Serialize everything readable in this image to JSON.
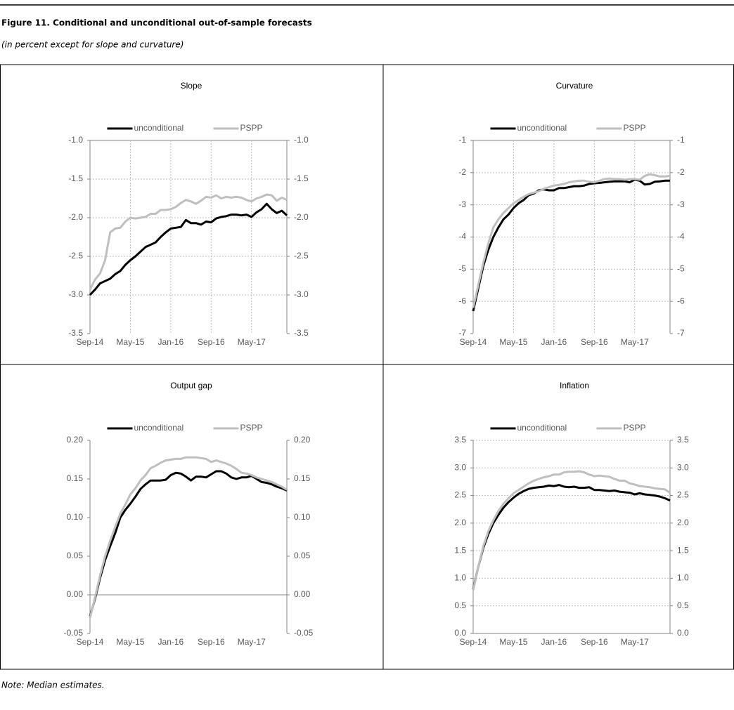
{
  "title": "Figure 11. Conditional and unconditional out-of-sample forecasts",
  "subtitle": "(in percent except for slope and curvature)",
  "note": "Note: Median estimates.",
  "chart_data": [
    {
      "type": "line",
      "title": "Slope",
      "grid": "both",
      "legend": "top",
      "categories": [
        "Sep-14",
        null,
        null,
        null,
        null,
        null,
        null,
        null,
        "May-15",
        null,
        null,
        null,
        null,
        null,
        null,
        null,
        "Jan-16",
        null,
        null,
        null,
        null,
        null,
        null,
        null,
        "Sep-16",
        null,
        null,
        null,
        null,
        null,
        null,
        null,
        "May-17",
        null,
        null,
        null,
        null,
        null,
        null,
        null
      ],
      "ylim": [
        -3.5,
        -1.0
      ],
      "yticks": [
        {
          "value": -3.5,
          "label": "-3.5"
        },
        {
          "value": -3.0,
          "label": "-3.0"
        },
        -2.5,
        {
          "value": -2.0,
          "label": "-2.0"
        },
        -1.5,
        {
          "value": -1.0,
          "label": "-1.0"
        }
      ],
      "series": [
        {
          "name": "unconditional",
          "color": "#000000",
          "values": [
            -3.0,
            -2.93,
            -2.85,
            -2.82,
            -2.79,
            -2.73,
            -2.69,
            -2.61,
            -2.55,
            -2.5,
            -2.44,
            -2.38,
            -2.35,
            -2.32,
            -2.25,
            -2.19,
            -2.14,
            -2.13,
            -2.12,
            -2.03,
            -2.07,
            -2.07,
            -2.09,
            -2.05,
            -2.06,
            -2.01,
            -1.99,
            -1.98,
            -1.96,
            -1.96,
            -1.97,
            -1.96,
            -1.99,
            -1.93,
            -1.89,
            -1.82,
            -1.89,
            -1.94,
            -1.91,
            -1.97
          ]
        },
        {
          "name": "PSPP",
          "color": "#bfbfbf",
          "values": [
            -2.93,
            -2.8,
            -2.72,
            -2.55,
            -2.19,
            -2.14,
            -2.13,
            -2.05,
            -2.0,
            -2.01,
            -2.0,
            -1.99,
            -1.95,
            -1.95,
            -1.9,
            -1.9,
            -1.89,
            -1.86,
            -1.81,
            -1.77,
            -1.79,
            -1.82,
            -1.78,
            -1.73,
            -1.74,
            -1.71,
            -1.75,
            -1.73,
            -1.74,
            -1.73,
            -1.74,
            -1.77,
            -1.79,
            -1.75,
            -1.73,
            -1.7,
            -1.71,
            -1.78,
            -1.74,
            -1.77
          ]
        }
      ]
    },
    {
      "type": "line",
      "title": "Curvature",
      "grid": "both",
      "legend": "top",
      "categories": [
        "Sep-14",
        null,
        null,
        null,
        null,
        null,
        null,
        null,
        "May-15",
        null,
        null,
        null,
        null,
        null,
        null,
        null,
        "Jan-16",
        null,
        null,
        null,
        null,
        null,
        null,
        null,
        "Sep-16",
        null,
        null,
        null,
        null,
        null,
        null,
        null,
        "May-17",
        null,
        null,
        null,
        null,
        null,
        null,
        null
      ],
      "ylim": [
        -7,
        -1
      ],
      "yticks": [
        -7,
        -6,
        -5,
        -4,
        -3,
        -2,
        -1
      ],
      "series": [
        {
          "name": "unconditional",
          "color": "#000000",
          "values": [
            -6.3,
            -5.6,
            -4.9,
            -4.4,
            -4.0,
            -3.7,
            -3.45,
            -3.3,
            -3.1,
            -2.95,
            -2.85,
            -2.7,
            -2.65,
            -2.55,
            -2.52,
            -2.55,
            -2.55,
            -2.48,
            -2.48,
            -2.45,
            -2.42,
            -2.42,
            -2.4,
            -2.35,
            -2.33,
            -2.32,
            -2.3,
            -2.28,
            -2.27,
            -2.27,
            -2.27,
            -2.3,
            -2.22,
            -2.25,
            -2.37,
            -2.35,
            -2.28,
            -2.27,
            -2.25,
            -2.25
          ]
        },
        {
          "name": "PSPP",
          "color": "#bfbfbf",
          "values": [
            -6.2,
            -5.5,
            -4.8,
            -4.2,
            -3.7,
            -3.45,
            -3.25,
            -3.1,
            -2.95,
            -2.85,
            -2.75,
            -2.67,
            -2.62,
            -2.58,
            -2.5,
            -2.45,
            -2.4,
            -2.38,
            -2.35,
            -2.3,
            -2.27,
            -2.25,
            -2.25,
            -2.28,
            -2.3,
            -2.25,
            -2.2,
            -2.18,
            -2.2,
            -2.2,
            -2.22,
            -2.2,
            -2.2,
            -2.22,
            -2.1,
            -2.05,
            -2.08,
            -2.12,
            -2.12,
            -2.1
          ]
        }
      ]
    },
    {
      "type": "line",
      "title": "Output gap",
      "grid": "none",
      "legend": "top",
      "categories": [
        "Sep-14",
        null,
        null,
        null,
        null,
        null,
        null,
        null,
        "May-15",
        null,
        null,
        null,
        null,
        null,
        null,
        null,
        "Jan-16",
        null,
        null,
        null,
        null,
        null,
        null,
        null,
        "Sep-16",
        null,
        null,
        null,
        null,
        null,
        null,
        null,
        "May-17",
        null,
        null,
        null,
        null,
        null,
        null,
        null
      ],
      "ylim": [
        -0.05,
        0.2
      ],
      "yticks": [
        -0.05,
        {
          "value": 0,
          "label": "0.00"
        },
        0.05,
        {
          "value": 0.1,
          "label": "0.10"
        },
        0.15,
        {
          "value": 0.2,
          "label": "0.20"
        }
      ],
      "series": [
        {
          "name": "unconditional",
          "color": "#000000",
          "values": [
            -0.028,
            -0.005,
            0.022,
            0.045,
            0.063,
            0.08,
            0.1,
            0.11,
            0.118,
            0.127,
            0.137,
            0.143,
            0.148,
            0.148,
            0.148,
            0.149,
            0.155,
            0.158,
            0.157,
            0.153,
            0.148,
            0.153,
            0.153,
            0.152,
            0.156,
            0.16,
            0.16,
            0.157,
            0.152,
            0.15,
            0.152,
            0.152,
            0.154,
            0.15,
            0.146,
            0.145,
            0.143,
            0.14,
            0.138,
            0.135
          ]
        },
        {
          "name": "PSPP",
          "color": "#bfbfbf",
          "values": [
            -0.03,
            -0.003,
            0.025,
            0.05,
            0.07,
            0.088,
            0.105,
            0.117,
            0.13,
            0.138,
            0.148,
            0.155,
            0.164,
            0.167,
            0.171,
            0.174,
            0.175,
            0.176,
            0.176,
            0.178,
            0.178,
            0.178,
            0.177,
            0.176,
            0.172,
            0.174,
            0.172,
            0.17,
            0.167,
            0.163,
            0.158,
            0.157,
            0.155,
            0.152,
            0.15,
            0.148,
            0.146,
            0.143,
            0.14,
            0.136
          ]
        }
      ]
    },
    {
      "type": "line",
      "title": "Inflation",
      "grid": "y",
      "legend": "top",
      "categories": [
        "Sep-14",
        null,
        null,
        null,
        null,
        null,
        null,
        null,
        "May-15",
        null,
        null,
        null,
        null,
        null,
        null,
        null,
        "Jan-16",
        null,
        null,
        null,
        null,
        null,
        null,
        null,
        "Sep-16",
        null,
        null,
        null,
        null,
        null,
        null,
        null,
        "May-17",
        null,
        null,
        null,
        null,
        null,
        null,
        null
      ],
      "ylim": [
        0,
        3.5
      ],
      "yticks": [
        {
          "value": 0,
          "label": "0.0"
        },
        0.5,
        {
          "value": 1,
          "label": "1.0"
        },
        1.5,
        {
          "value": 2,
          "label": "2.0"
        },
        2.5,
        {
          "value": 3,
          "label": "3.0"
        },
        3.5
      ],
      "series": [
        {
          "name": "unconditional",
          "color": "#000000",
          "values": [
            0.8,
            1.2,
            1.55,
            1.8,
            2.0,
            2.15,
            2.28,
            2.38,
            2.46,
            2.53,
            2.58,
            2.62,
            2.64,
            2.65,
            2.66,
            2.68,
            2.67,
            2.69,
            2.66,
            2.65,
            2.66,
            2.64,
            2.64,
            2.65,
            2.6,
            2.6,
            2.59,
            2.58,
            2.59,
            2.57,
            2.56,
            2.55,
            2.52,
            2.54,
            2.52,
            2.51,
            2.5,
            2.48,
            2.45,
            2.41
          ]
        },
        {
          "name": "PSPP",
          "color": "#bfbfbf",
          "values": [
            0.78,
            1.2,
            1.58,
            1.85,
            2.05,
            2.22,
            2.35,
            2.45,
            2.54,
            2.6,
            2.66,
            2.72,
            2.77,
            2.8,
            2.83,
            2.85,
            2.88,
            2.88,
            2.92,
            2.93,
            2.93,
            2.94,
            2.92,
            2.88,
            2.85,
            2.86,
            2.85,
            2.84,
            2.8,
            2.77,
            2.77,
            2.72,
            2.7,
            2.67,
            2.66,
            2.65,
            2.63,
            2.62,
            2.61,
            2.55
          ]
        }
      ]
    }
  ]
}
